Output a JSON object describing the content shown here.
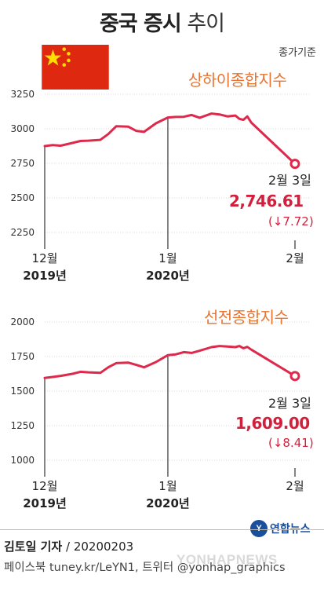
{
  "header": {
    "title_bold": "중국 증시",
    "title_light": "추이",
    "subtitle": "종가기준"
  },
  "colors": {
    "line": "#dd2a4c",
    "axis": "#333333",
    "chart_title": "#e9742f",
    "value_red": "#d21f3c"
  },
  "icons": {
    "flag": "china-flag-icon"
  },
  "chart_data": [
    {
      "type": "line",
      "title": "상하이종합지수",
      "ylim": [
        2250,
        3250
      ],
      "yticks": [
        "3250",
        "3000",
        "2750",
        "2500",
        "2250"
      ],
      "ytick_values": [
        3250,
        3000,
        2750,
        2500,
        2250
      ],
      "xticks": [
        {
          "month": "12월",
          "year": "2019년"
        },
        {
          "month": "1월",
          "year": "2020년"
        },
        {
          "month": "2월",
          "year": ""
        }
      ],
      "x_range": [
        "2019-12-02",
        "2020-02-03"
      ],
      "x_ticks_dates": [
        "2019-12-02",
        "2020-01-02",
        "2020-02-03"
      ],
      "series": [
        {
          "x": [
            "2019-12-02",
            "2019-12-04",
            "2019-12-06",
            "2019-12-09",
            "2019-12-11",
            "2019-12-13",
            "2019-12-16",
            "2019-12-18",
            "2019-12-20",
            "2019-12-23",
            "2019-12-25",
            "2019-12-27",
            "2019-12-30",
            "2020-01-02",
            "2020-01-04",
            "2020-01-06",
            "2020-01-08",
            "2020-01-10",
            "2020-01-13",
            "2020-01-15",
            "2020-01-17",
            "2020-01-19",
            "2020-01-20",
            "2020-01-21",
            "2020-01-22",
            "2020-01-23",
            "2020-02-03"
          ],
          "y": [
            2875,
            2882,
            2878,
            2898,
            2912,
            2914,
            2920,
            2962,
            3018,
            3016,
            2985,
            2978,
            3040,
            3082,
            3086,
            3087,
            3100,
            3080,
            3110,
            3104,
            3090,
            3096,
            3072,
            3065,
            3090,
            3045,
            2746.61
          ]
        }
      ],
      "annotation": {
        "date": "2월 3일",
        "value": "2,746.61",
        "change": "(↓7.72)"
      }
    },
    {
      "type": "line",
      "title": "선전종합지수",
      "ylim": [
        1000,
        2000
      ],
      "yticks": [
        "2000",
        "1750",
        "1500",
        "1250",
        "1000"
      ],
      "ytick_values": [
        2000,
        1750,
        1500,
        1250,
        1000
      ],
      "xticks": [
        {
          "month": "12월",
          "year": "2019년"
        },
        {
          "month": "1월",
          "year": "2020년"
        },
        {
          "month": "2월",
          "year": ""
        }
      ],
      "x_range": [
        "2019-12-02",
        "2020-02-03"
      ],
      "x_ticks_dates": [
        "2019-12-02",
        "2020-01-02",
        "2020-02-03"
      ],
      "series": [
        {
          "x": [
            "2019-12-02",
            "2019-12-04",
            "2019-12-06",
            "2019-12-09",
            "2019-12-11",
            "2019-12-13",
            "2019-12-16",
            "2019-12-18",
            "2019-12-20",
            "2019-12-23",
            "2019-12-25",
            "2019-12-27",
            "2019-12-30",
            "2020-01-02",
            "2020-01-04",
            "2020-01-06",
            "2020-01-08",
            "2020-01-10",
            "2020-01-13",
            "2020-01-15",
            "2020-01-17",
            "2020-01-19",
            "2020-01-20",
            "2020-01-21",
            "2020-01-22",
            "2020-01-23",
            "2020-02-03"
          ],
          "y": [
            1595,
            1602,
            1610,
            1625,
            1640,
            1636,
            1632,
            1672,
            1702,
            1706,
            1690,
            1672,
            1710,
            1760,
            1766,
            1782,
            1776,
            1792,
            1818,
            1826,
            1822,
            1818,
            1826,
            1810,
            1820,
            1800,
            1609.0
          ]
        }
      ],
      "annotation": {
        "date": "2월 3일",
        "value": "1,609.00",
        "change": "(↓8.41)"
      }
    }
  ],
  "byline": {
    "reporter": "김토일 기자",
    "date": "/ 20200203"
  },
  "footer": {
    "text": "페이스북 tuney.kr/LeYN1, 트위터 @yonhap_graphics"
  },
  "logo": {
    "text": "연합뉴스"
  },
  "watermark": "YONHAPNEWS"
}
